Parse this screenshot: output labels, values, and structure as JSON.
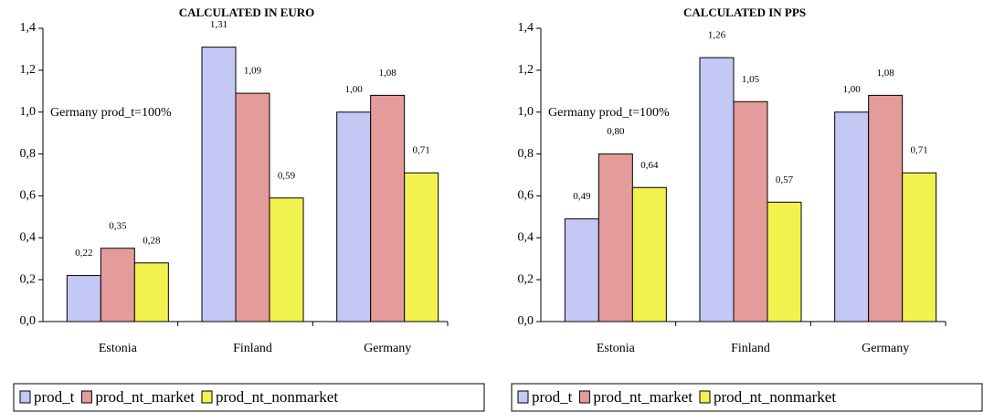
{
  "chart_data": [
    {
      "type": "bar",
      "title": "CALCULATED IN EURO",
      "annotation": "Germany prod_t=100%",
      "categories": [
        "Estonia",
        "Finland",
        "Germany"
      ],
      "series": [
        {
          "name": "prod_t",
          "color": "#c4c8f4",
          "values": [
            0.22,
            1.31,
            1.0
          ],
          "value_labels": [
            "0,22",
            "1,31",
            "1,00"
          ]
        },
        {
          "name": "prod_nt_market",
          "color": "#e39b9b",
          "values": [
            0.35,
            1.09,
            1.08
          ],
          "value_labels": [
            "0,35",
            "1,09",
            "1,08"
          ]
        },
        {
          "name": "prod_nt_nonmarket",
          "color": "#f2f24f",
          "values": [
            0.28,
            0.59,
            0.71
          ],
          "value_labels": [
            "0,28",
            "0,59",
            "0,71"
          ]
        }
      ],
      "ylim": [
        0,
        1.4
      ],
      "yticks": [
        {
          "value": 0,
          "label": "0,0"
        },
        {
          "value": 0.2,
          "label": "0,2"
        },
        {
          "value": 0.4,
          "label": "0,4"
        },
        {
          "value": 0.6,
          "label": "0,6"
        },
        {
          "value": 0.8,
          "label": "0,8"
        },
        {
          "value": 1.0,
          "label": "1,0"
        },
        {
          "value": 1.2,
          "label": "1,2"
        },
        {
          "value": 1.4,
          "label": "1,4"
        }
      ],
      "legend": "bottom"
    },
    {
      "type": "bar",
      "title": "CALCULATED IN PPS",
      "annotation": "Germany prod_t=100%",
      "categories": [
        "Estonia",
        "Finland",
        "Germany"
      ],
      "series": [
        {
          "name": "prod_t",
          "color": "#c4c8f4",
          "values": [
            0.49,
            1.26,
            1.0
          ],
          "value_labels": [
            "0,49",
            "1,26",
            "1,00"
          ]
        },
        {
          "name": "prod_nt_market",
          "color": "#e39b9b",
          "values": [
            0.8,
            1.05,
            1.08
          ],
          "value_labels": [
            "0,80",
            "1,05",
            "1,08"
          ]
        },
        {
          "name": "prod_nt_nonmarket",
          "color": "#f2f24f",
          "values": [
            0.64,
            0.57,
            0.71
          ],
          "value_labels": [
            "0,64",
            "0,57",
            "0,71"
          ]
        }
      ],
      "ylim": [
        0,
        1.4
      ],
      "yticks": [
        {
          "value": 0,
          "label": "0,0"
        },
        {
          "value": 0.2,
          "label": "0,2"
        },
        {
          "value": 0.4,
          "label": "0,4"
        },
        {
          "value": 0.6,
          "label": "0,6"
        },
        {
          "value": 0.8,
          "label": "0,8"
        },
        {
          "value": 1.0,
          "label": "1,0"
        },
        {
          "value": 1.2,
          "label": "1,2"
        },
        {
          "value": 1.4,
          "label": "1,4"
        }
      ],
      "legend": "bottom"
    }
  ]
}
